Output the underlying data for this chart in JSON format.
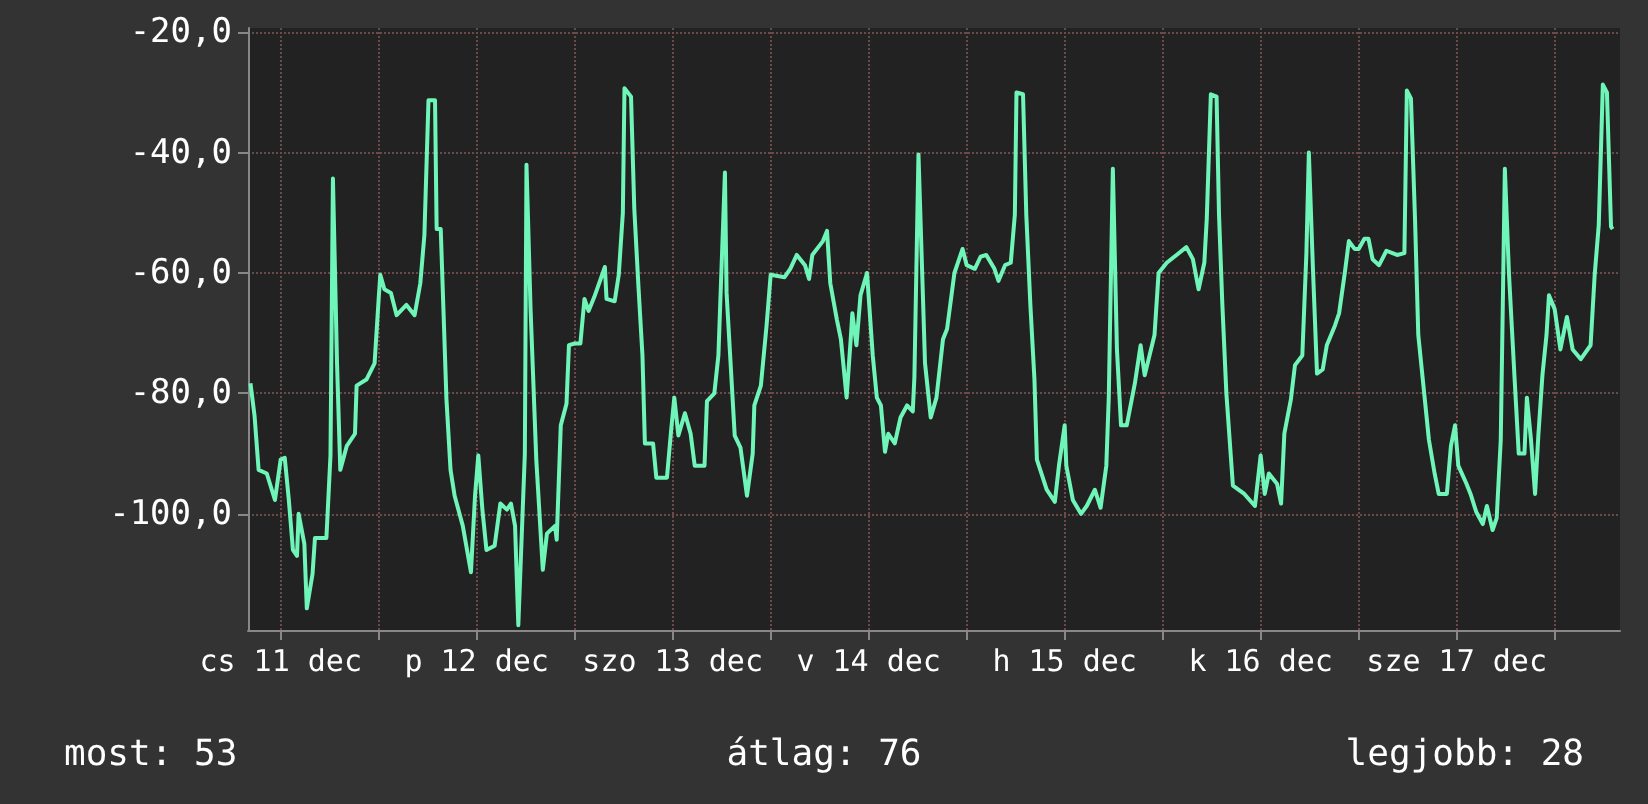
{
  "chart_data": {
    "type": "line",
    "x": [
      "--12-11T08:18",
      "--12-11T08:48",
      "--12-11T09:18",
      "--12-11T10:18",
      "--12-11T11:18",
      "--12-11T12:00",
      "--12-11T12:30",
      "--12-11T13:00",
      "--12-11T13:30",
      "--12-11T14:00",
      "--12-11T14:12",
      "--12-11T14:54",
      "--12-11T15:12",
      "--12-11T15:54",
      "--12-11T16:12",
      "--12-11T17:36",
      "--12-11T18:06",
      "--12-11T18:24",
      "--12-11T18:54",
      "--12-11T19:18",
      "--12-11T20:06",
      "--12-11T21:06",
      "--12-11T21:18",
      "--12-11T22:30",
      "--12-11T23:30",
      "--12-12T00:00",
      "--12-12T00:12",
      "--12-12T00:42",
      "--12-12T01:30",
      "--12-12T02:12",
      "--12-12T03:24",
      "--12-12T04:24",
      "--12-12T05:06",
      "--12-12T05:36",
      "--12-12T06:06",
      "--12-12T06:54",
      "--12-12T07:06",
      "--12-12T07:36",
      "--12-12T08:18",
      "--12-12T08:48",
      "--12-12T09:18",
      "--12-12T10:18",
      "--12-12T11:18",
      "--12-12T11:48",
      "--12-12T12:12",
      "--12-12T12:42",
      "--12-12T13:12",
      "--12-12T14:12",
      "--12-12T14:54",
      "--12-12T15:42",
      "--12-12T16:12",
      "--12-12T16:42",
      "--12-12T17:06",
      "--12-12T17:54",
      "--12-12T18:06",
      "--12-12T18:36",
      "--12-12T19:18",
      "--12-12T20:06",
      "--12-12T20:36",
      "--12-12T21:36",
      "--12-12T21:48",
      "--12-12T22:18",
      "--12-12T23:00",
      "--12-12T23:18",
      "--12-13T00:00",
      "--12-13T00:42",
      "--12-13T01:12",
      "--12-13T01:42",
      "--12-13T02:24",
      "--12-13T03:42",
      "--12-13T03:54",
      "--12-13T04:54",
      "--12-13T05:24",
      "--12-13T05:54",
      "--12-13T06:06",
      "--12-13T06:54",
      "--12-13T07:18",
      "--12-13T07:48",
      "--12-13T08:18",
      "--12-13T08:36",
      "--12-13T09:36",
      "--12-13T10:00",
      "--12-13T11:18",
      "--12-13T11:48",
      "--12-13T12:12",
      "--12-13T12:42",
      "--12-13T13:30",
      "--12-13T14:12",
      "--12-13T14:42",
      "--12-13T15:54",
      "--12-13T16:12",
      "--12-13T17:06",
      "--12-13T17:36",
      "--12-13T18:24",
      "--12-13T18:36",
      "--12-13T19:36",
      "--12-13T20:18",
      "--12-13T21:06",
      "--12-13T21:48",
      "--12-13T22:00",
      "--12-13T22:48",
      "--12-13T23:30",
      "--12-14T00:00",
      "--12-14T01:42",
      "--12-14T02:24",
      "--12-14T03:12",
      "--12-14T04:12",
      "--12-14T04:42",
      "--12-14T05:06",
      "--12-14T06:24",
      "--12-14T06:54",
      "--12-14T07:18",
      "--12-14T08:06",
      "--12-14T08:36",
      "--12-14T09:18",
      "--12-14T09:48",
      "--12-14T10:00",
      "--12-14T10:30",
      "--12-14T11:00",
      "--12-14T11:48",
      "--12-14T12:30",
      "--12-14T13:00",
      "--12-14T13:30",
      "--12-14T14:00",
      "--12-14T14:24",
      "--12-14T15:12",
      "--12-14T15:54",
      "--12-14T16:42",
      "--12-14T17:24",
      "--12-14T17:36",
      "--12-14T18:06",
      "--12-14T18:54",
      "--12-14T19:36",
      "--12-14T20:18",
      "--12-14T21:06",
      "--12-14T21:36",
      "--12-14T22:30",
      "--12-14T23:30",
      "--12-15T00:00",
      "--12-15T01:00",
      "--12-15T01:42",
      "--12-15T02:24",
      "--12-15T03:24",
      "--12-15T03:54",
      "--12-15T04:42",
      "--12-15T05:24",
      "--12-15T05:54",
      "--12-15T06:06",
      "--12-15T06:54",
      "--12-15T07:18",
      "--12-15T07:48",
      "--12-15T08:18",
      "--12-15T08:36",
      "--12-15T09:48",
      "--12-15T10:48",
      "--12-15T11:18",
      "--12-15T12:00",
      "--12-15T12:12",
      "--12-15T13:00",
      "--12-15T14:00",
      "--12-15T14:42",
      "--12-15T15:42",
      "--12-15T16:24",
      "--12-15T17:06",
      "--12-15T17:24",
      "--12-15T17:54",
      "--12-15T18:24",
      "--12-15T18:54",
      "--12-15T19:36",
      "--12-15T20:36",
      "--12-15T21:18",
      "--12-15T21:48",
      "--12-15T23:00",
      "--12-15T23:30",
      "--12-16T00:30",
      "--12-16T01:42",
      "--12-16T02:54",
      "--12-16T03:42",
      "--12-16T04:24",
      "--12-16T05:06",
      "--12-16T05:24",
      "--12-16T05:54",
      "--12-16T06:36",
      "--12-16T06:54",
      "--12-16T07:18",
      "--12-16T07:48",
      "--12-16T08:36",
      "--12-16T10:00",
      "--12-16T11:18",
      "--12-16T12:00",
      "--12-16T12:30",
      "--12-16T13:00",
      "--12-16T14:00",
      "--12-16T14:30",
      "--12-16T14:54",
      "--12-16T15:42",
      "--12-16T16:12",
      "--12-16T17:06",
      "--12-16T17:36",
      "--12-16T17:54",
      "--12-16T18:24",
      "--12-16T18:54",
      "--12-16T19:36",
      "--12-16T20:06",
      "--12-16T21:06",
      "--12-16T21:36",
      "--12-16T22:18",
      "--12-16T22:48",
      "--12-16T23:30",
      "--12-17T00:00",
      "--12-17T00:42",
      "--12-17T01:12",
      "--12-17T01:42",
      "--12-17T02:30",
      "--12-17T03:24",
      "--12-17T04:42",
      "--12-17T05:36",
      "--12-17T05:54",
      "--12-17T06:24",
      "--12-17T06:54",
      "--12-17T07:18",
      "--12-17T08:06",
      "--12-17T08:36",
      "--12-17T09:18",
      "--12-17T09:48",
      "--12-17T10:48",
      "--12-17T11:18",
      "--12-17T11:48",
      "--12-17T12:12",
      "--12-17T13:12",
      "--12-17T13:42",
      "--12-17T14:24",
      "--12-17T15:12",
      "--12-17T15:42",
      "--12-17T16:24",
      "--12-17T16:54",
      "--12-17T17:24",
      "--12-17T17:54",
      "--12-17T18:24",
      "--12-17T19:06",
      "--12-17T19:36",
      "--12-17T20:18",
      "--12-17T20:36",
      "--12-17T21:06",
      "--12-17T21:36",
      "--12-17T22:00",
      "--12-17T22:30",
      "--12-17T23:00",
      "--12-17T23:18",
      "--12-18T00:00",
      "--12-18T00:42",
      "--12-18T01:30",
      "--12-18T02:12",
      "--12-18T03:12",
      "--12-18T04:24",
      "--12-18T04:54",
      "--12-18T05:24",
      "--12-18T05:54",
      "--12-18T06:24",
      "--12-18T06:54",
      "--12-18T07:06"
    ],
    "values": [
      -78.3,
      -83.7,
      -92.7,
      -93.3,
      -97.7,
      -91,
      -90.7,
      -97.7,
      -106,
      -107,
      -100,
      -105,
      -115.7,
      -110,
      -104,
      -104,
      -90.3,
      -44.3,
      -75,
      -92.7,
      -88.7,
      -86.7,
      -78.7,
      -77.7,
      -75,
      -64.3,
      -60.3,
      -62.7,
      -63.3,
      -67,
      -65.3,
      -67,
      -61.7,
      -53.7,
      -31.3,
      -31.3,
      -52.7,
      -52.7,
      -81,
      -92.7,
      -97,
      -102,
      -109.7,
      -97,
      -90.3,
      -99.3,
      -106,
      -105.3,
      -98.3,
      -99.3,
      -98.3,
      -102,
      -118.5,
      -90,
      -42,
      -66,
      -91,
      -109.3,
      -103.3,
      -102,
      -104.3,
      -85.3,
      -81.7,
      -72,
      -71.7,
      -71.7,
      -64.3,
      -66.3,
      -64,
      -59,
      -64.3,
      -64.7,
      -60.3,
      -50,
      -29.3,
      -30.7,
      -49.3,
      -62,
      -73.7,
      -88.3,
      -88.3,
      -94,
      -94,
      -86.3,
      -80.7,
      -87,
      -83.3,
      -86.7,
      -92,
      -92,
      -81.3,
      -80,
      -73.7,
      -43.3,
      -63.3,
      -87,
      -89,
      -97,
      -90,
      -82,
      -78.7,
      -68.7,
      -60.3,
      -60.7,
      -59.3,
      -57,
      -58.7,
      -61,
      -57,
      -54.7,
      -53,
      -61.7,
      -67.7,
      -71,
      -80.7,
      -71,
      -66.7,
      -72,
      -63.7,
      -60,
      -73.7,
      -80.7,
      -82,
      -89.7,
      -86.7,
      -88.3,
      -84,
      -82,
      -83,
      -77.3,
      -40.3,
      -75,
      -84,
      -80.7,
      -71,
      -69.3,
      -60,
      -56,
      -58.7,
      -59.3,
      -57.3,
      -57,
      -59.3,
      -61.3,
      -58.7,
      -58.3,
      -50.3,
      -30,
      -30.3,
      -50.3,
      -65.3,
      -77.7,
      -91,
      -96,
      -98,
      -92,
      -85.3,
      -92,
      -97.7,
      -100,
      -98.7,
      -96,
      -99,
      -92,
      -80.7,
      -42.7,
      -72.7,
      -85.3,
      -85.3,
      -78.3,
      -72,
      -77,
      -70.3,
      -60,
      -58.3,
      -57,
      -55.7,
      -57.7,
      -62.7,
      -58.3,
      -51,
      -30.3,
      -30.7,
      -50.3,
      -65,
      -80,
      -95.3,
      -96.7,
      -98.7,
      -90.3,
      -96.7,
      -93.3,
      -95,
      -98.3,
      -86.7,
      -81,
      -75.3,
      -73.7,
      -56.7,
      -40,
      -59.3,
      -76.7,
      -76,
      -72,
      -68.7,
      -66.7,
      -60,
      -54.7,
      -56,
      -56,
      -54.3,
      -54.3,
      -57.7,
      -58.7,
      -56.3,
      -57,
      -56.7,
      -29.7,
      -31,
      -51,
      -70.3,
      -81,
      -87.7,
      -93.3,
      -96.7,
      -96.7,
      -88.7,
      -85.3,
      -92,
      -95,
      -96.7,
      -99.7,
      -101.7,
      -98.7,
      -102.7,
      -100.7,
      -87.7,
      -42.7,
      -60,
      -77.7,
      -90,
      -90,
      -80.7,
      -87.7,
      -96.7,
      -87,
      -77,
      -70.3,
      -63.7,
      -66,
      -72.7,
      -67.3,
      -72.7,
      -74.3,
      -72,
      -60.3,
      -52,
      -28.7,
      -30,
      -52.3,
      -52.7
    ],
    "color": "#6ff5b8",
    "xlim": [
      "--12-11T08:00",
      "--12-18T08:00"
    ],
    "xticks": [
      {
        "value": "--12-11T12:00",
        "label": "cs 11 dec"
      },
      {
        "value": "--12-12T00:00",
        "label": null
      },
      {
        "value": "--12-12T12:00",
        "label": "p 12 dec"
      },
      {
        "value": "--12-13T00:00",
        "label": null
      },
      {
        "value": "--12-13T12:00",
        "label": "szo 13 dec"
      },
      {
        "value": "--12-14T00:00",
        "label": null
      },
      {
        "value": "--12-14T12:00",
        "label": "v 14 dec"
      },
      {
        "value": "--12-15T00:00",
        "label": null
      },
      {
        "value": "--12-15T12:00",
        "label": "h 15 dec"
      },
      {
        "value": "--12-16T00:00",
        "label": null
      },
      {
        "value": "--12-16T12:00",
        "label": "k 16 dec"
      },
      {
        "value": "--12-17T00:00",
        "label": null
      },
      {
        "value": "--12-17T12:00",
        "label": "sze 17 dec"
      },
      {
        "value": "--12-18T00:00",
        "label": null
      }
    ],
    "ylim": [
      -119.3,
      -19.3
    ],
    "yticks": [
      {
        "value": -100,
        "label": "-100,0"
      },
      {
        "value": -80,
        "label": "-80,0"
      },
      {
        "value": -60,
        "label": "-60,0"
      },
      {
        "value": -40,
        "label": "-40,0"
      },
      {
        "value": -20,
        "label": "-20,0"
      }
    ],
    "grid": true,
    "marker": "none",
    "line_style": "solid",
    "annotations": [
      "most: 53",
      "átlag: 76",
      "legjobb: 28"
    ]
  }
}
